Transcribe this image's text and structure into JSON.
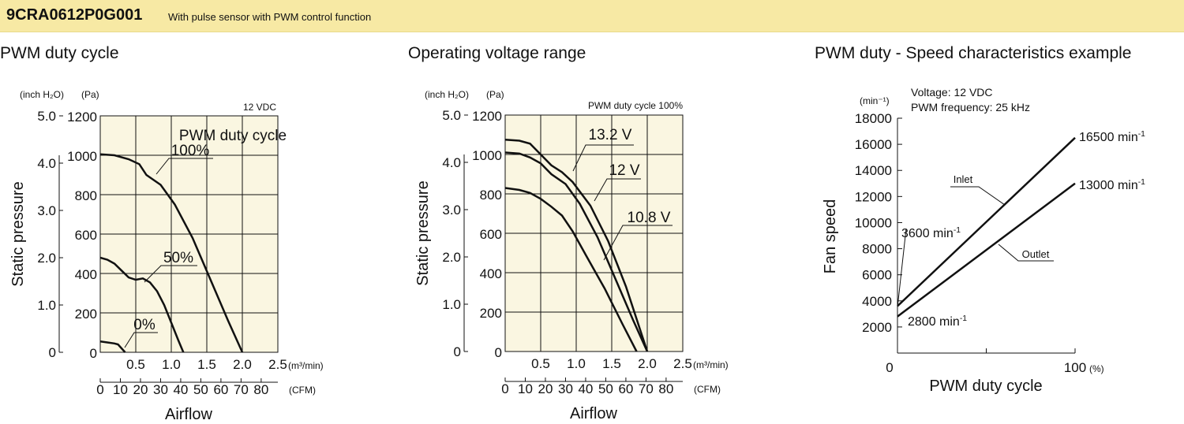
{
  "header": {
    "model": "9CRA0612P0G001",
    "description": "With pulse sensor with PWM control function"
  },
  "chart_data": [
    {
      "type": "line",
      "title": "PWM duty cycle",
      "xlabel": "Airflow",
      "ylabel": "Static pressure",
      "x_unit": "(m³/min)",
      "x_unit2": "(CFM)",
      "y_unit_inch": "(inch H₂O)",
      "y_unit_pa": "(Pa)",
      "xlim": [
        0,
        2.5
      ],
      "ylim": [
        0,
        1200
      ],
      "x_ticks": [
        "0.5",
        "1.0",
        "1.5",
        "2.0",
        "2.5"
      ],
      "x_ticks_cfm": [
        "0",
        "10",
        "20",
        "30",
        "40",
        "50",
        "60",
        "70",
        "80"
      ],
      "y_ticks_pa": [
        "0",
        "200",
        "400",
        "600",
        "800",
        "1000",
        "1200"
      ],
      "y_ticks_inch": [
        "0",
        "1.0",
        "2.0",
        "3.0",
        "4.0",
        "5.0"
      ],
      "condition_label": "12 VDC",
      "legend_title": "PWM duty cycle",
      "grid": true,
      "series": [
        {
          "name": "100%",
          "x": [
            0,
            0.2,
            0.4,
            0.55,
            0.65,
            0.85,
            1.05,
            1.3,
            1.55,
            1.8,
            2.0
          ],
          "y": [
            1005,
            1000,
            980,
            955,
            900,
            850,
            750,
            580,
            370,
            160,
            0
          ]
        },
        {
          "name": "50%",
          "x": [
            0,
            0.1,
            0.2,
            0.3,
            0.4,
            0.5,
            0.6,
            0.7,
            0.8,
            0.9,
            1.0,
            1.1,
            1.17
          ],
          "y": [
            480,
            470,
            450,
            415,
            380,
            368,
            375,
            355,
            310,
            240,
            150,
            60,
            0
          ]
        },
        {
          "name": "0%",
          "x": [
            0,
            0.1,
            0.2,
            0.25,
            0.35
          ],
          "y": [
            55,
            50,
            45,
            40,
            0
          ]
        }
      ]
    },
    {
      "type": "line",
      "title": "Operating voltage range",
      "xlabel": "Airflow",
      "ylabel": "Static pressure",
      "x_unit": "(m³/min)",
      "x_unit2": "(CFM)",
      "y_unit_inch": "(inch H₂O)",
      "y_unit_pa": "(Pa)",
      "xlim": [
        0,
        2.5
      ],
      "ylim": [
        0,
        1200
      ],
      "x_ticks": [
        "0.5",
        "1.0",
        "1.5",
        "2.0",
        "2.5"
      ],
      "x_ticks_cfm": [
        "0",
        "10",
        "20",
        "30",
        "40",
        "50",
        "60",
        "70",
        "80"
      ],
      "y_ticks_pa": [
        "0",
        "200",
        "400",
        "600",
        "800",
        "1000",
        "1200"
      ],
      "y_ticks_inch": [
        "0",
        "1.0",
        "2.0",
        "3.0",
        "4.0",
        "5.0"
      ],
      "condition_label": "PWM duty cycle 100%",
      "grid": true,
      "series": [
        {
          "name": "13.2 V",
          "x": [
            0,
            0.2,
            0.35,
            0.5,
            0.65,
            0.8,
            0.95,
            1.2,
            1.45,
            1.7,
            2.0
          ],
          "y": [
            1075,
            1070,
            1055,
            1000,
            945,
            910,
            860,
            740,
            560,
            330,
            0
          ]
        },
        {
          "name": "12 V",
          "x": [
            0,
            0.2,
            0.35,
            0.5,
            0.65,
            0.85,
            1.05,
            1.3,
            1.55,
            1.8,
            2.0
          ],
          "y": [
            1010,
            1005,
            985,
            955,
            900,
            850,
            750,
            580,
            370,
            160,
            0
          ]
        },
        {
          "name": "10.8 V",
          "x": [
            0,
            0.2,
            0.35,
            0.5,
            0.65,
            0.8,
            0.95,
            1.15,
            1.4,
            1.65,
            1.85
          ],
          "y": [
            830,
            820,
            805,
            775,
            735,
            690,
            610,
            480,
            320,
            140,
            0
          ]
        }
      ]
    },
    {
      "type": "line",
      "title": "PWM duty - Speed characteristics example",
      "xlabel": "PWM duty cycle",
      "ylabel": "Fan speed",
      "x_unit": "(%)",
      "y_unit": "(min⁻¹)",
      "xlim": [
        0,
        100
      ],
      "ylim": [
        0,
        18000
      ],
      "x_ticks": [
        "0",
        "100"
      ],
      "y_ticks": [
        "2000",
        "4000",
        "6000",
        "8000",
        "10000",
        "12000",
        "14000",
        "16000",
        "18000"
      ],
      "condition_lines": [
        "Voltage: 12 VDC",
        "PWM frequency: 25 kHz"
      ],
      "grid": false,
      "series": [
        {
          "name": "Inlet",
          "x": [
            0,
            100
          ],
          "y": [
            3600,
            16500
          ]
        },
        {
          "name": "Outlet",
          "x": [
            0,
            100
          ],
          "y": [
            2800,
            13000
          ]
        }
      ],
      "annotations": {
        "inlet_start": {
          "value": "3600 min",
          "sup": "-1"
        },
        "inlet_end": {
          "value": "16500 min",
          "sup": "-1"
        },
        "outlet_start": {
          "value": "2800 min",
          "sup": "-1"
        },
        "outlet_end": {
          "value": "13000 min",
          "sup": "-1"
        }
      }
    }
  ]
}
